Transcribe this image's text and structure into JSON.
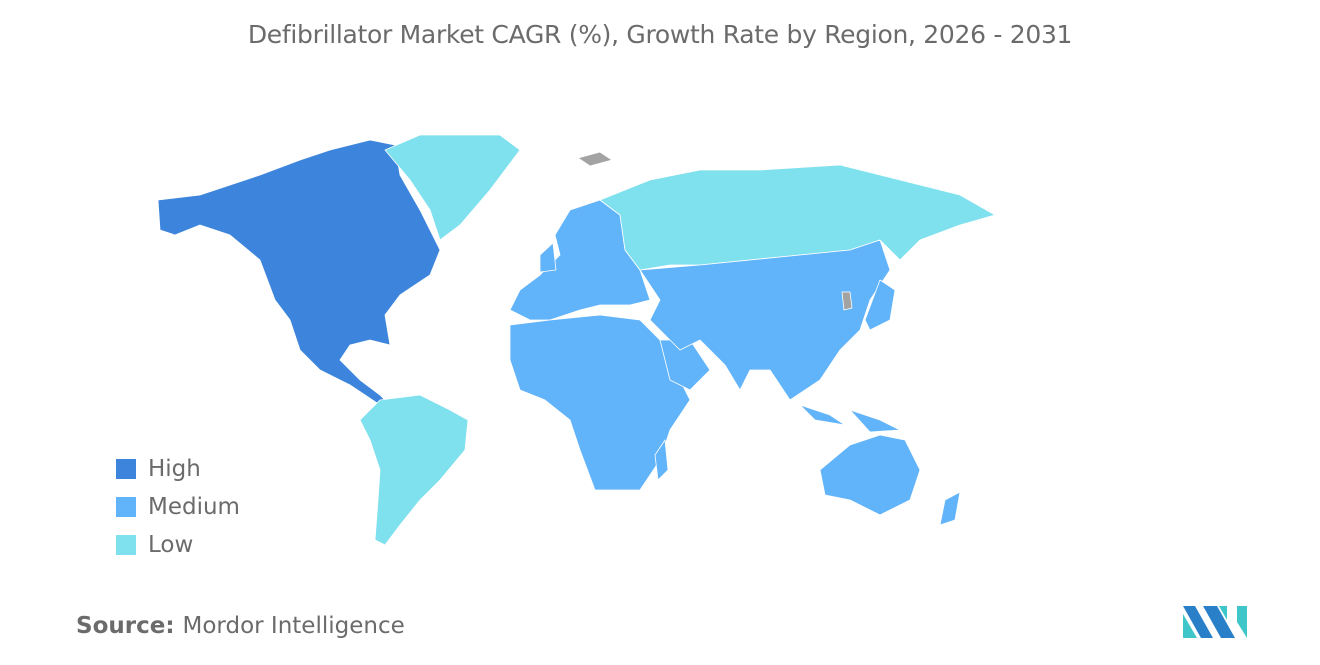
{
  "title": "Defibrillator Market CAGR (%), Growth Rate by Region, 2026 - 2031",
  "legend": [
    {
      "label": "High",
      "color": "#3d85dc"
    },
    {
      "label": "Medium",
      "color": "#62b4fa"
    },
    {
      "label": "Low",
      "color": "#7fe0ee"
    }
  ],
  "no_data_color": "#a3a3a3",
  "regions": {
    "North America": "High",
    "Europe": "Medium",
    "Asia-Pacific": "Medium",
    "Middle East and Africa": "Medium",
    "South America": "Low",
    "Russia": "Low",
    "Greenland": "Low"
  },
  "source": {
    "label": "Source:",
    "value": "Mordor Intelligence"
  },
  "logo": "Mordor Intelligence logo"
}
